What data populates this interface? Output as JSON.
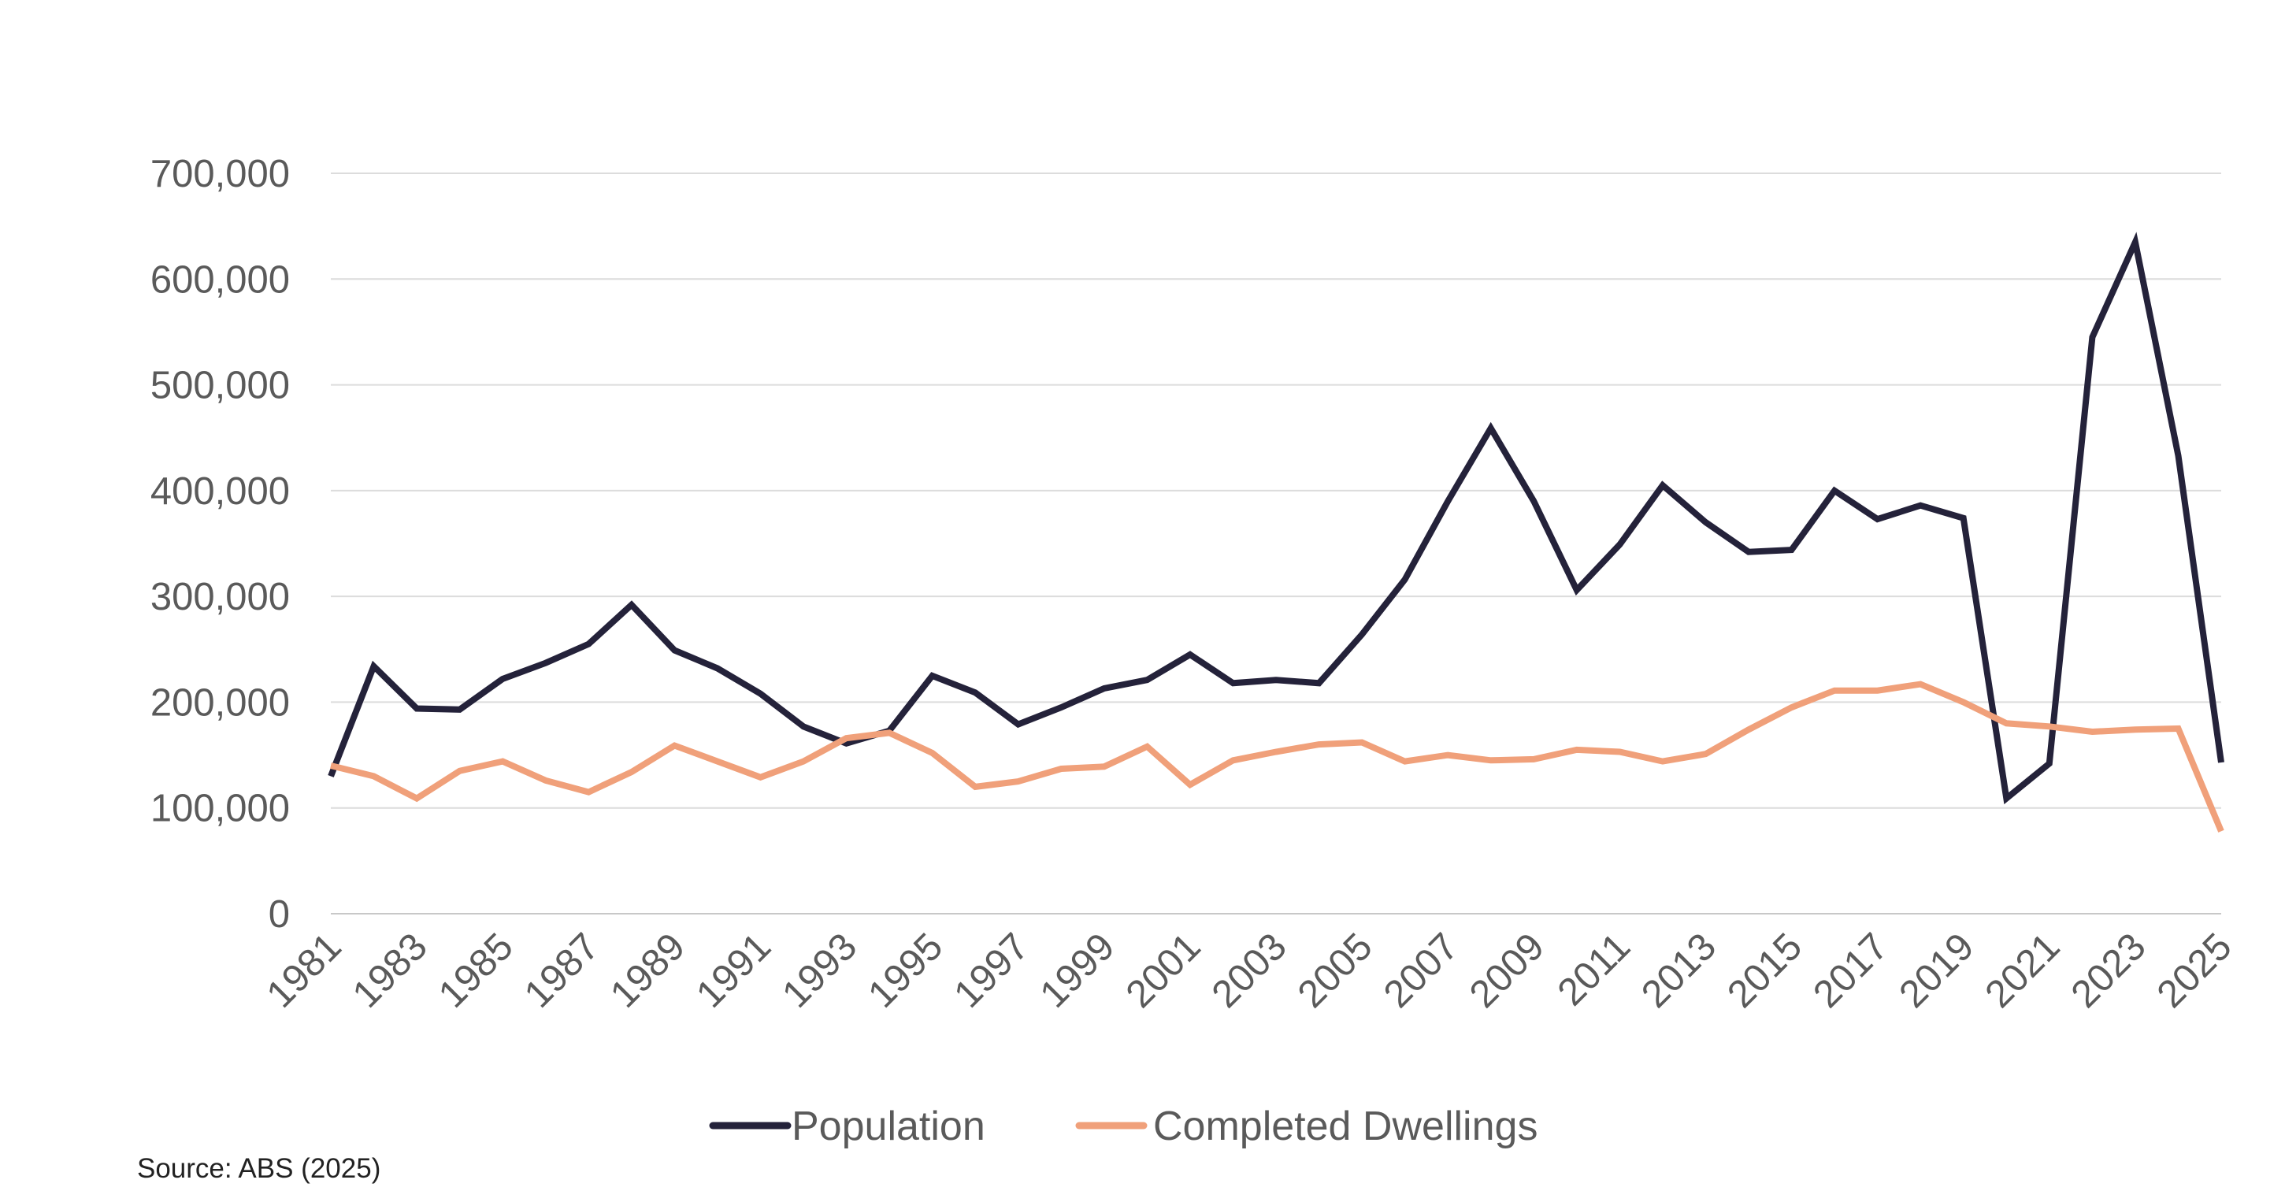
{
  "chart_data": {
    "type": "line",
    "title": "",
    "xlabel": "",
    "ylabel": "",
    "ylim": [
      0,
      700000
    ],
    "y_ticks": [
      0,
      100000,
      200000,
      300000,
      400000,
      500000,
      600000,
      700000
    ],
    "y_tick_labels": [
      "0",
      "100,000",
      "200,000",
      "300,000",
      "400,000",
      "500,000",
      "600,000",
      "700,000"
    ],
    "x": [
      1981,
      1982,
      1983,
      1984,
      1985,
      1986,
      1987,
      1988,
      1989,
      1990,
      1991,
      1992,
      1993,
      1994,
      1995,
      1996,
      1997,
      1998,
      1999,
      2000,
      2001,
      2002,
      2003,
      2004,
      2005,
      2006,
      2007,
      2008,
      2009,
      2010,
      2011,
      2012,
      2013,
      2014,
      2015,
      2016,
      2017,
      2018,
      2019,
      2020,
      2021,
      2022,
      2023,
      2024,
      2025
    ],
    "x_tick_labels": [
      "1981",
      "1983",
      "1985",
      "1987",
      "1989",
      "1991",
      "1993",
      "1995",
      "1997",
      "1999",
      "2001",
      "2003",
      "2005",
      "2007",
      "2009",
      "2011",
      "2013",
      "2015",
      "2017",
      "2019",
      "2021",
      "2023",
      "2025"
    ],
    "grid": true,
    "legend_position": "bottom-center",
    "series": [
      {
        "name": "Population",
        "color": "#24223a",
        "values": [
          130000,
          234000,
          194000,
          193000,
          222000,
          237000,
          255000,
          292000,
          249000,
          232000,
          208000,
          177000,
          161000,
          173000,
          225000,
          209000,
          179000,
          195000,
          213000,
          221000,
          245000,
          218000,
          221000,
          218000,
          264000,
          316000,
          390000,
          459000,
          390000,
          306000,
          349000,
          405000,
          370000,
          342000,
          344000,
          400000,
          373000,
          386000,
          374000,
          109000,
          142000,
          545000,
          635000,
          433000,
          143000
        ]
      },
      {
        "name": "Completed Dwellings",
        "color": "#f0a07a",
        "values": [
          140000,
          130000,
          109000,
          135000,
          144000,
          126000,
          115000,
          134000,
          159000,
          144000,
          129000,
          144000,
          166000,
          171000,
          152000,
          120000,
          125000,
          137000,
          139000,
          158000,
          122000,
          145000,
          153000,
          160000,
          162000,
          144000,
          150000,
          145000,
          146000,
          155000,
          153000,
          144000,
          151000,
          174000,
          195000,
          211000,
          211000,
          217000,
          200000,
          180000,
          177000,
          172000,
          174000,
          175000,
          78000
        ]
      }
    ]
  },
  "source": "Source: ABS (2025)"
}
